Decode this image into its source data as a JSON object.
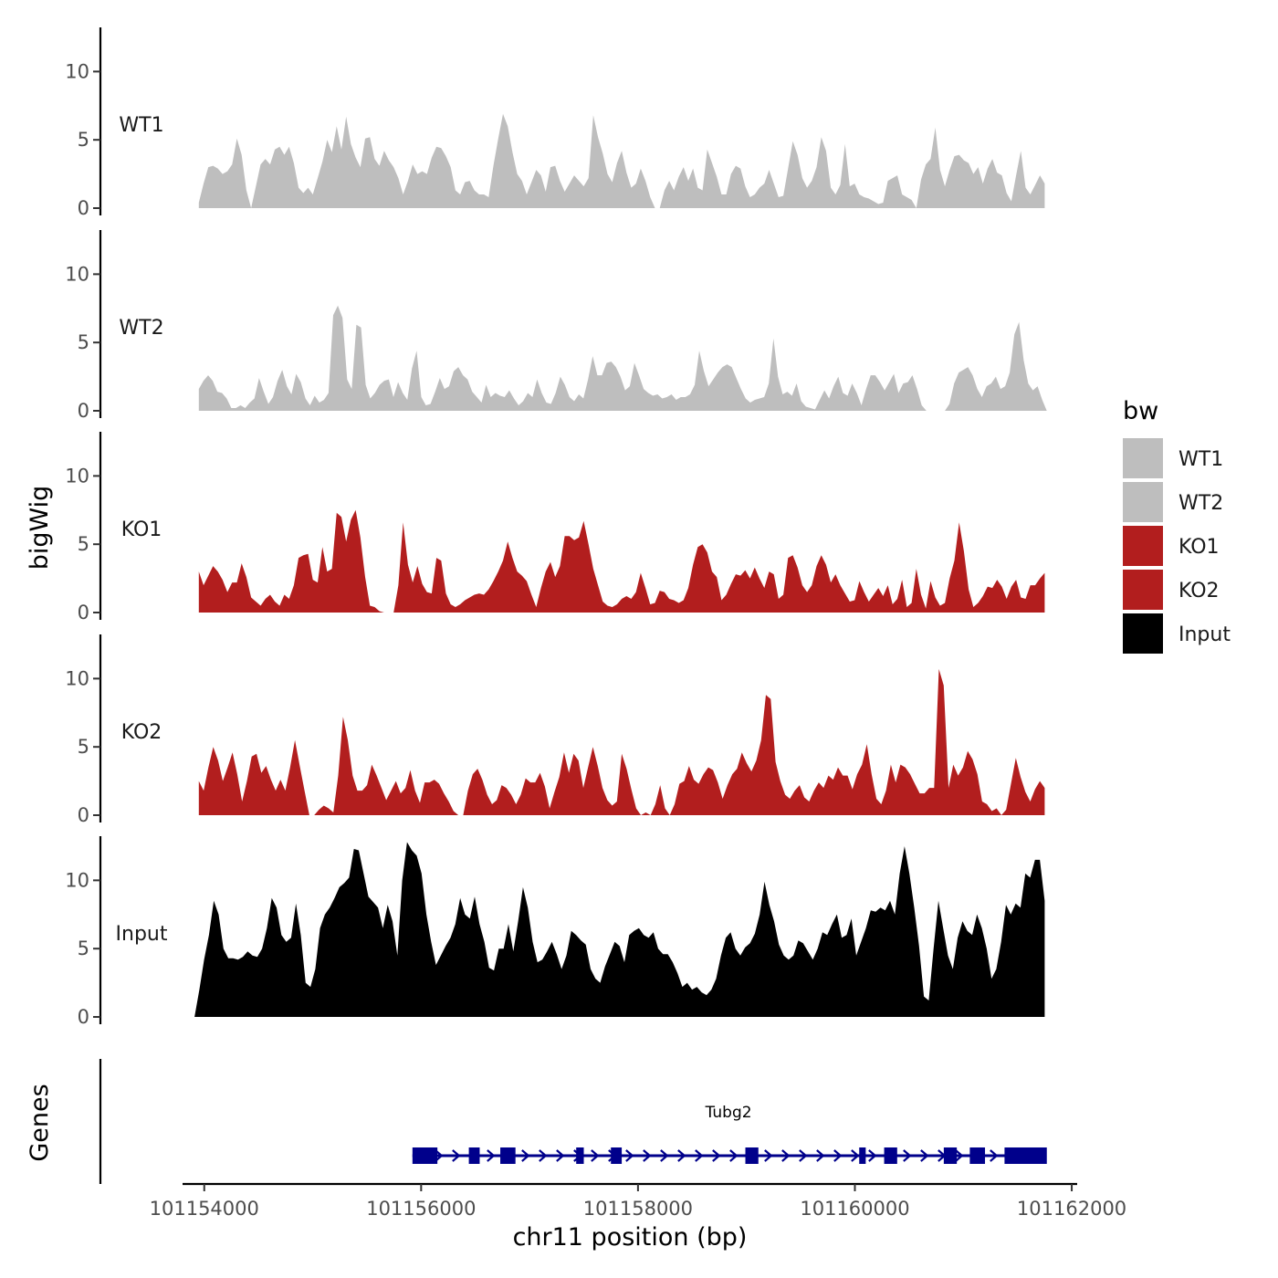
{
  "chart_data": {
    "type": "area",
    "title": "",
    "chromosome": "chr11",
    "xlabel": "chr11 position (bp)",
    "ylabel_signal": "bigWig",
    "ylabel_genes": "Genes",
    "xlim": [
      101153800,
      101162050
    ],
    "x_ticks": [
      101154000,
      101156000,
      101158000,
      101160000,
      101162000
    ],
    "x_tick_labels": [
      "101154000",
      "101156000",
      "101158000",
      "101160000",
      "101162000"
    ],
    "ylim": [
      0,
      13.5
    ],
    "y_ticks": [
      0,
      5,
      10
    ],
    "y_tick_labels": [
      "0",
      "5",
      "10"
    ],
    "grid": false,
    "legend": {
      "title": "bw",
      "position": "right",
      "entries": [
        {
          "label": "WT1",
          "color": "#bebebe"
        },
        {
          "label": "WT2",
          "color": "#bebebe"
        },
        {
          "label": "KO1",
          "color": "#b21e1e"
        },
        {
          "label": "KO2",
          "color": "#b21e1e"
        },
        {
          "label": "Input",
          "color": "#000000"
        }
      ]
    },
    "series": [
      {
        "name": "WT1",
        "color": "#bebebe",
        "x_start": 101153950,
        "x_end": 101161750,
        "values": [
          0.4,
          1.8,
          3.0,
          3.1,
          2.9,
          2.5,
          2.7,
          3.2,
          5.1,
          3.9,
          1.3,
          0.0,
          1.6,
          3.2,
          3.6,
          3.2,
          4.3,
          4.5,
          3.9,
          4.5,
          3.3,
          1.5,
          1.1,
          1.5,
          1.0,
          2.2,
          3.4,
          5.0,
          4.1,
          6.0,
          4.3,
          6.7,
          4.7,
          3.7,
          3.0,
          5.1,
          5.2,
          3.6,
          3.1,
          4.2,
          3.5,
          3.0,
          2.2,
          1.0,
          2.0,
          3.2,
          2.5,
          2.7,
          2.5,
          3.7,
          4.5,
          4.4,
          3.8,
          3.0,
          1.3,
          1.0,
          1.9,
          2.0,
          1.3,
          1.0,
          1.0,
          0.8,
          3.1,
          5.1,
          6.9,
          6.0,
          4.1,
          2.5,
          2.0,
          1.0,
          1.9,
          2.8,
          2.4,
          1.2,
          3.0,
          3.1,
          2.0,
          1.2,
          1.8,
          2.4,
          2.0,
          1.6,
          2.2,
          6.8,
          5.2,
          4.0,
          2.5,
          1.9,
          3.3,
          4.2,
          2.6,
          1.5,
          1.8,
          2.9,
          2.0,
          0.8,
          0.0,
          0.0,
          1.3,
          2.0,
          1.3,
          2.3,
          3.0,
          2.0,
          2.9,
          1.5,
          1.3,
          4.3,
          3.3,
          2.3,
          1.0,
          1.0,
          2.5,
          3.1,
          2.9,
          1.6,
          0.8,
          1.0,
          1.5,
          1.8,
          2.8,
          1.8,
          0.8,
          0.9,
          2.9,
          4.9,
          3.9,
          2.2,
          1.5,
          2.0,
          3.0,
          5.2,
          4.2,
          1.5,
          1.0,
          1.7,
          4.7,
          1.6,
          1.8,
          1.0,
          0.8,
          0.7,
          0.5,
          0.3,
          0.4,
          2.0,
          2.2,
          2.4,
          1.0,
          0.8,
          0.6,
          0.0,
          2.1,
          3.2,
          3.6,
          5.9,
          2.8,
          1.6,
          2.8,
          3.8,
          3.9,
          3.5,
          3.3,
          2.5,
          3.0,
          1.8,
          2.9,
          3.6,
          2.6,
          2.4,
          1.1,
          0.5,
          2.4,
          4.2,
          1.5,
          1.0,
          1.7,
          2.4,
          1.8
        ]
      },
      {
        "name": "WT2",
        "color": "#bebebe",
        "x_start": 101153950,
        "x_end": 101161770,
        "values": [
          1.6,
          2.2,
          2.6,
          2.2,
          1.4,
          1.3,
          0.9,
          0.2,
          0.2,
          0.4,
          0.2,
          0.6,
          0.9,
          2.4,
          1.4,
          0.5,
          1.0,
          2.2,
          3.0,
          1.8,
          1.2,
          2.7,
          2.1,
          0.9,
          0.4,
          1.1,
          0.6,
          0.8,
          1.3,
          7.0,
          7.7,
          6.8,
          2.3,
          1.6,
          6.3,
          6.1,
          1.9,
          0.9,
          1.3,
          1.9,
          2.2,
          2.3,
          1.0,
          2.1,
          1.3,
          0.8,
          3.1,
          4.4,
          1.0,
          0.4,
          0.5,
          1.4,
          2.4,
          1.6,
          1.8,
          2.9,
          3.2,
          2.6,
          2.3,
          1.4,
          1.0,
          0.6,
          1.9,
          1.0,
          1.3,
          1.1,
          1.0,
          1.5,
          0.9,
          0.4,
          0.7,
          1.3,
          1.0,
          2.3,
          1.3,
          0.6,
          0.5,
          1.3,
          2.5,
          1.9,
          1.0,
          0.7,
          1.2,
          0.9,
          2.3,
          4.0,
          2.6,
          2.6,
          3.5,
          3.6,
          3.2,
          2.5,
          1.5,
          1.8,
          3.5,
          2.6,
          1.6,
          1.3,
          1.1,
          1.2,
          0.9,
          1.0,
          1.2,
          0.8,
          1.0,
          1.0,
          1.2,
          1.9,
          4.4,
          2.9,
          1.8,
          2.3,
          2.8,
          3.2,
          3.4,
          3.2,
          2.4,
          1.6,
          0.9,
          0.6,
          0.8,
          0.9,
          1.0,
          2.0,
          5.3,
          2.5,
          1.2,
          1.4,
          1.1,
          2.0,
          0.7,
          0.3,
          0.2,
          0.1,
          0.8,
          1.5,
          0.9,
          1.8,
          2.5,
          1.3,
          1.1,
          2.0,
          1.3,
          0.4,
          1.6,
          2.6,
          2.6,
          2.1,
          1.5,
          2.1,
          2.7,
          1.3,
          2.0,
          2.1,
          2.6,
          1.6,
          0.4,
          0.0,
          0.0,
          0.0,
          0.0,
          0.0,
          0.5,
          2.0,
          2.8,
          3.0,
          3.2,
          2.6,
          1.6,
          1.0,
          1.8,
          2.0,
          2.5,
          1.6,
          1.8,
          2.8,
          5.6,
          6.5,
          3.7,
          2.0,
          1.5,
          1.8,
          0.8,
          0.0
        ]
      },
      {
        "name": "KO1",
        "color": "#b21e1e",
        "x_start": 101153950,
        "x_end": 101161750,
        "values": [
          3.0,
          2.0,
          2.7,
          3.4,
          3.0,
          2.4,
          1.5,
          2.2,
          2.2,
          3.6,
          2.6,
          1.1,
          0.8,
          0.5,
          1.0,
          1.3,
          0.8,
          0.5,
          1.3,
          1.0,
          2.0,
          4.0,
          4.2,
          4.3,
          2.4,
          2.2,
          4.8,
          3.0,
          3.2,
          7.3,
          7.0,
          5.2,
          6.8,
          7.5,
          5.5,
          2.6,
          0.5,
          0.4,
          0.1,
          0.0,
          0.0,
          0.0,
          2.0,
          6.6,
          3.5,
          2.2,
          3.4,
          2.1,
          1.5,
          1.4,
          4.0,
          3.8,
          1.4,
          0.6,
          0.4,
          0.6,
          0.9,
          1.1,
          1.3,
          1.4,
          1.3,
          1.7,
          2.3,
          3.0,
          3.8,
          5.2,
          4.0,
          3.0,
          2.7,
          2.3,
          1.3,
          0.4,
          1.8,
          3.0,
          3.7,
          2.6,
          3.4,
          5.6,
          5.6,
          5.3,
          5.5,
          6.7,
          5.0,
          3.2,
          2.0,
          0.8,
          0.5,
          0.4,
          0.6,
          1.0,
          1.2,
          1.0,
          1.5,
          2.9,
          1.8,
          0.6,
          0.7,
          1.6,
          1.5,
          1.0,
          0.9,
          0.7,
          0.9,
          1.8,
          3.5,
          4.8,
          5.0,
          4.4,
          3.0,
          2.6,
          0.9,
          1.3,
          2.1,
          2.8,
          2.7,
          3.1,
          2.5,
          3.3,
          2.5,
          1.8,
          3.0,
          2.8,
          1.0,
          1.3,
          4.0,
          4.2,
          3.3,
          2.0,
          1.5,
          2.0,
          3.4,
          4.2,
          3.5,
          2.2,
          2.8,
          2.0,
          1.4,
          0.8,
          0.9,
          2.3,
          1.5,
          0.8,
          1.3,
          1.8,
          1.2,
          2.0,
          0.6,
          1.0,
          2.4,
          0.4,
          0.7,
          3.2,
          1.3,
          0.3,
          2.3,
          1.1,
          0.5,
          0.7,
          2.5,
          3.8,
          6.6,
          4.5,
          1.7,
          0.4,
          0.7,
          1.2,
          1.9,
          1.8,
          2.4,
          1.9,
          1.0,
          1.9,
          2.4,
          1.1,
          1.0,
          2.0,
          2.0,
          2.5,
          2.9
        ]
      },
      {
        "name": "KO2",
        "color": "#b21e1e",
        "x_start": 101153950,
        "x_end": 101161750,
        "values": [
          2.5,
          1.8,
          3.5,
          5.0,
          4.0,
          2.5,
          3.5,
          4.6,
          3.0,
          1.0,
          2.5,
          4.3,
          4.5,
          3.1,
          3.6,
          2.6,
          1.8,
          2.6,
          1.8,
          3.5,
          5.5,
          3.6,
          1.8,
          0.0,
          0.0,
          0.4,
          0.7,
          0.5,
          0.2,
          2.9,
          7.2,
          5.5,
          2.9,
          1.8,
          1.8,
          2.2,
          3.7,
          2.9,
          2.0,
          1.1,
          1.8,
          2.5,
          1.6,
          2.0,
          3.3,
          1.8,
          0.9,
          2.4,
          2.4,
          2.6,
          2.3,
          1.6,
          1.0,
          0.3,
          0.0,
          0.0,
          1.8,
          3.0,
          3.4,
          2.6,
          1.5,
          0.8,
          1.1,
          2.2,
          2.0,
          1.5,
          0.8,
          1.5,
          2.7,
          2.4,
          2.4,
          3.1,
          2.1,
          0.5,
          1.7,
          2.8,
          4.6,
          3.1,
          4.5,
          4.0,
          2.0,
          3.5,
          5.0,
          3.6,
          2.0,
          1.1,
          0.7,
          1.0,
          4.5,
          3.4,
          1.9,
          0.5,
          0.0,
          0.2,
          0.0,
          0.8,
          2.2,
          0.5,
          0.0,
          0.8,
          2.3,
          2.5,
          3.6,
          2.6,
          2.3,
          3.0,
          3.5,
          3.3,
          2.4,
          1.2,
          2.2,
          3.0,
          3.4,
          4.6,
          3.8,
          3.2,
          4.0,
          5.5,
          8.8,
          8.5,
          3.9,
          2.5,
          1.5,
          1.2,
          1.8,
          2.2,
          1.3,
          1.0,
          1.8,
          2.4,
          2.0,
          2.9,
          2.6,
          3.5,
          2.9,
          2.9,
          1.9,
          3.0,
          3.7,
          5.2,
          3.0,
          1.2,
          0.8,
          1.8,
          3.7,
          2.4,
          3.7,
          3.5,
          3.0,
          2.3,
          1.6,
          1.6,
          2.0,
          2.0,
          10.7,
          9.5,
          2.0,
          3.7,
          2.9,
          3.5,
          4.7,
          4.1,
          3.0,
          1.0,
          0.8,
          0.3,
          0.5,
          0.0,
          0.4,
          2.3,
          4.2,
          2.8,
          1.7,
          1.0,
          1.9,
          2.5,
          2.0
        ]
      },
      {
        "name": "Input",
        "color": "#000000",
        "x_start": 101153910,
        "x_end": 101161750,
        "values": [
          0.0,
          2.0,
          4.2,
          6.0,
          8.5,
          7.5,
          5.0,
          4.3,
          4.3,
          4.2,
          4.4,
          4.8,
          4.5,
          4.4,
          5.0,
          6.5,
          8.7,
          8.0,
          6.0,
          5.5,
          5.8,
          8.3,
          6.0,
          2.5,
          2.2,
          3.5,
          6.5,
          7.5,
          8.0,
          8.7,
          9.5,
          9.8,
          10.2,
          12.3,
          12.2,
          10.5,
          8.8,
          8.4,
          8.0,
          6.5,
          8.2,
          7.0,
          4.5,
          10.0,
          12.8,
          12.2,
          11.8,
          10.5,
          7.5,
          5.5,
          3.8,
          4.5,
          5.2,
          5.8,
          6.8,
          8.7,
          7.5,
          7.2,
          8.8,
          6.8,
          5.5,
          3.6,
          3.4,
          5.0,
          5.0,
          6.8,
          4.8,
          7.0,
          9.5,
          8.0,
          5.5,
          4.0,
          4.2,
          4.8,
          5.5,
          4.6,
          3.5,
          4.5,
          6.3,
          6.0,
          5.6,
          5.3,
          3.5,
          2.8,
          2.5,
          3.7,
          4.6,
          5.5,
          5.2,
          4.0,
          6.0,
          6.3,
          6.5,
          6.0,
          5.8,
          6.2,
          5.0,
          4.6,
          4.6,
          4.0,
          3.2,
          2.2,
          2.5,
          2.0,
          2.2,
          1.8,
          1.6,
          2.0,
          2.8,
          4.5,
          5.8,
          6.2,
          5.0,
          4.5,
          5.1,
          5.4,
          6.1,
          7.5,
          9.9,
          8.2,
          7.0,
          5.3,
          4.5,
          4.2,
          4.5,
          5.6,
          5.4,
          4.8,
          4.2,
          5.0,
          6.2,
          6.0,
          6.8,
          7.5,
          5.8,
          6.0,
          7.2,
          4.5,
          5.5,
          6.5,
          7.8,
          7.7,
          8.0,
          7.8,
          8.5,
          7.5,
          10.5,
          12.5,
          10.5,
          8.0,
          5.2,
          1.5,
          1.2,
          5.0,
          8.5,
          6.5,
          4.5,
          3.5,
          5.8,
          7.0,
          6.3,
          6.0,
          7.5,
          6.5,
          5.0,
          2.8,
          3.5,
          5.5,
          8.2,
          7.5,
          8.3,
          8.0,
          10.5,
          10.2,
          11.5,
          11.5,
          8.5
        ]
      }
    ],
    "genes_track": {
      "gene_name": "Tubg2",
      "color": "#00008b",
      "strand": "+",
      "start": 101155920,
      "end": 101161750,
      "exons": [
        [
          101155920,
          101156150
        ],
        [
          101156440,
          101156540
        ],
        [
          101156730,
          101156870
        ],
        [
          101157430,
          101157500
        ],
        [
          101157750,
          101157850
        ],
        [
          101158990,
          101159110
        ],
        [
          101160040,
          101160100
        ],
        [
          101160270,
          101160390
        ],
        [
          101160820,
          101160940
        ],
        [
          101161060,
          101161200
        ],
        [
          101161380,
          101161770
        ]
      ]
    }
  }
}
